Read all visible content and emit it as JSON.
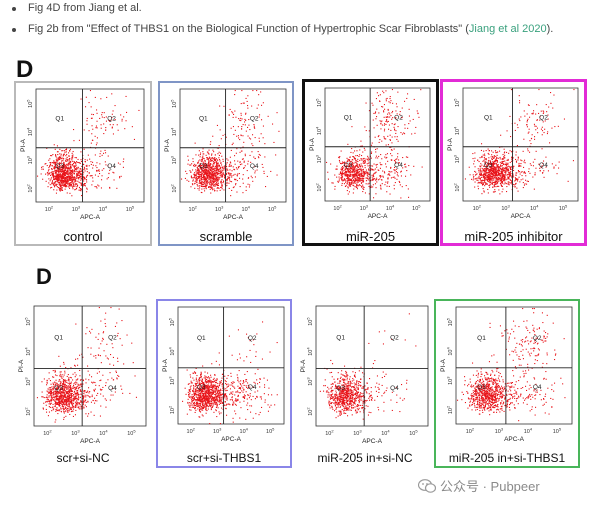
{
  "bullets": [
    {
      "text": "Fig 4D from Jiang et al."
    },
    {
      "text_before": "Fig 2b from \"Effect of THBS1 on the Biological Function of Hypertrophic Scar Fibroblasts\" (",
      "link": "Jiang et al 2020",
      "text_after": ")."
    }
  ],
  "figure_top": {
    "label": "D"
  },
  "figure_bottom": {
    "label": "D"
  },
  "panel_axes": {
    "ylabel": "PI-A",
    "xlabel": "APC-A",
    "ticks": [
      "10",
      "10",
      "10",
      "10"
    ],
    "tick_exps": [
      "2",
      "3",
      "4",
      "5"
    ],
    "quadrants": [
      "Q1",
      "Q2",
      "Q3",
      "Q4"
    ]
  },
  "panels": [
    {
      "caption": "control",
      "border": "#b9b9b9"
    },
    {
      "caption": "scramble",
      "border": "#7f95c6"
    },
    {
      "caption": "miR-205",
      "border": "#111111"
    },
    {
      "caption": "miR-205 inhibitor",
      "border": "#e22bd6"
    },
    {
      "caption": "scr+si-NC",
      "border": "#ffffff"
    },
    {
      "caption": "scr+si-THBS1",
      "border": "#8a86e8"
    },
    {
      "caption": "miR-205 in+si-NC",
      "border": "#ffffff"
    },
    {
      "caption": "miR-205 in+si-THBS1",
      "border": "#49b55a"
    }
  ],
  "dot_color": "#e8141a",
  "watermark": {
    "text": "公众号 · Pubpeer",
    "icon": "wechat-icon"
  }
}
